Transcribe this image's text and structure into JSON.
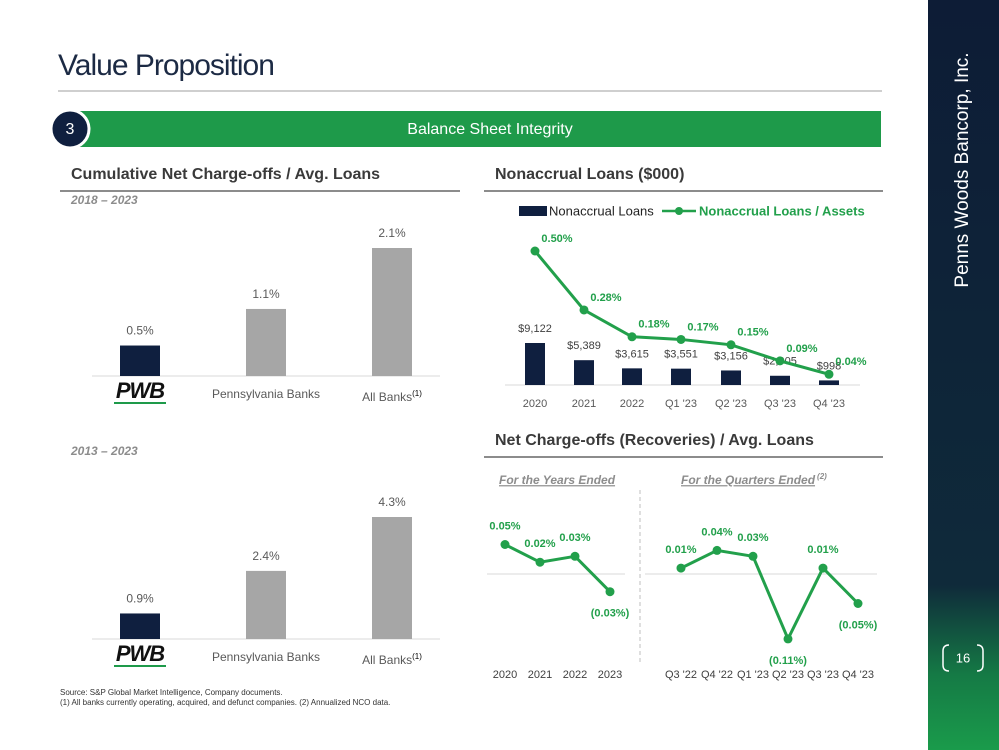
{
  "slide": {
    "title": "Value Proposition",
    "section_number": "3",
    "section_title": "Balance Sheet Integrity",
    "company": "Penns Woods Bancorp, Inc.",
    "page_number": "16",
    "footnotes": [
      "Source: S&P Global Market Intelligence, Company documents.",
      "(1) All banks currently operating, acquired, and defunct companies. (2) Annualized NCO data."
    ]
  },
  "chart_data": [
    {
      "type": "bar",
      "title": "Cumulative Net Charge-offs / Avg. Loans",
      "subtitle": "2018 – 2023",
      "categories": [
        "PWB",
        "Pennsylvania Banks",
        "All Banks"
      ],
      "category_notes": [
        null,
        null,
        "(1)"
      ],
      "values": [
        0.5,
        1.1,
        2.1
      ],
      "value_labels": [
        "0.5%",
        "1.1%",
        "2.1%"
      ],
      "colors": [
        "#0f1f3f",
        "#a6a6a6",
        "#a6a6a6"
      ]
    },
    {
      "type": "bar",
      "subtitle": "2013 – 2023",
      "categories": [
        "PWB",
        "Pennsylvania Banks",
        "All Banks"
      ],
      "category_notes": [
        null,
        null,
        "(1)"
      ],
      "values": [
        0.9,
        2.4,
        4.3
      ],
      "value_labels": [
        "0.9%",
        "2.4%",
        "4.3%"
      ],
      "colors": [
        "#0f1f3f",
        "#a6a6a6",
        "#a6a6a6"
      ]
    },
    {
      "type": "combo",
      "title": "Nonaccrual Loans ($000)",
      "categories": [
        "2020",
        "2021",
        "2022",
        "Q1 '23",
        "Q2 '23",
        "Q3 '23",
        "Q4 '23"
      ],
      "series": [
        {
          "name": "Nonaccrual Loans",
          "kind": "bar",
          "color": "#0f1f3f",
          "values": [
            9122,
            5389,
            3615,
            3551,
            3156,
            2005,
            998
          ],
          "value_labels": [
            "$9,122",
            "$5,389",
            "$3,615",
            "$3,551",
            "$3,156",
            "$2,005",
            "$998"
          ]
        },
        {
          "name": "Nonaccrual Loans / Assets",
          "kind": "line",
          "color": "#22a04b",
          "values": [
            0.5,
            0.28,
            0.18,
            0.17,
            0.15,
            0.09,
            0.04
          ],
          "value_labels": [
            "0.50%",
            "0.28%",
            "0.18%",
            "0.17%",
            "0.15%",
            "0.09%",
            "0.04%"
          ]
        }
      ]
    },
    {
      "type": "line",
      "title": "Net Charge-offs (Recoveries) / Avg. Loans",
      "subtitle": "For the Years Ended",
      "categories": [
        "2020",
        "2021",
        "2022",
        "2023"
      ],
      "color": "#22a04b",
      "values": [
        0.05,
        0.02,
        0.03,
        -0.03
      ],
      "value_labels": [
        "0.05%",
        "0.02%",
        "0.03%",
        "(0.03%)"
      ]
    },
    {
      "type": "line",
      "subtitle": "For the Quarters Ended",
      "subtitle_note": "(2)",
      "categories": [
        "Q3 '22",
        "Q4 '22",
        "Q1 '23",
        "Q2 '23",
        "Q3 '23",
        "Q4 '23"
      ],
      "color": "#22a04b",
      "values": [
        0.01,
        0.04,
        0.03,
        -0.11,
        0.01,
        -0.05
      ],
      "value_labels": [
        "0.01%",
        "0.04%",
        "0.03%",
        "(0.11%)",
        "0.01%",
        "(0.05%)"
      ]
    }
  ]
}
